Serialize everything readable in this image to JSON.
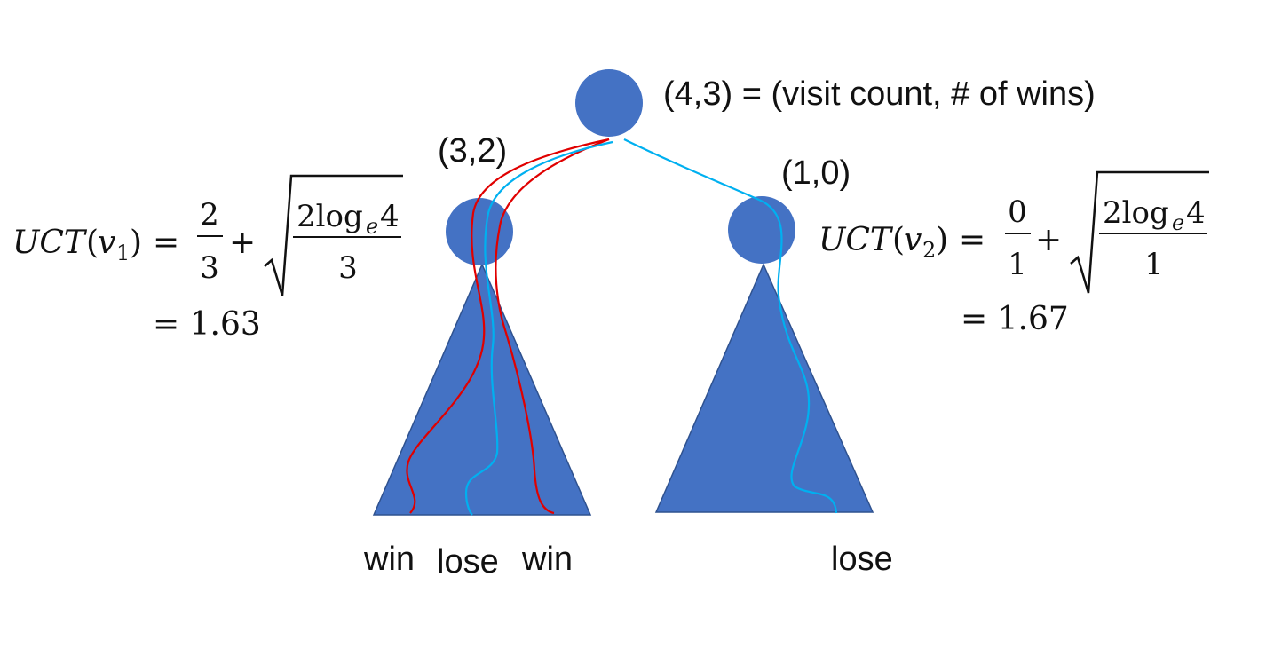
{
  "colors": {
    "node_fill": "#4472C4",
    "tree_fill": "#4472C4",
    "tree_stroke": "#2F528F",
    "win_path": "#E00000",
    "lose_path": "#00B0F0",
    "text": "#111111"
  },
  "root": {
    "label": "(4,3) = (visit count, # of wins)"
  },
  "left_child": {
    "label": "(3,2)",
    "formula": {
      "fn": "UCT",
      "open": "(",
      "var": "v",
      "sub": "1",
      "close": ")",
      "equals": "=",
      "frac_num": "2",
      "frac_den": "3",
      "plus": "+",
      "sqrt_num_coef": "2log",
      "sqrt_num_sub": "e",
      "sqrt_num_arg": "4",
      "sqrt_den": "3",
      "result": "= 1.63"
    },
    "outcomes": [
      "win",
      "lose",
      "win"
    ]
  },
  "right_child": {
    "label": "(1,0)",
    "formula": {
      "fn": "UCT",
      "open": "(",
      "var": "v",
      "sub": "2",
      "close": ")",
      "equals": "=",
      "frac_num": "0",
      "frac_den": "1",
      "plus": "+",
      "sqrt_num_coef": "2log",
      "sqrt_num_sub": "e",
      "sqrt_num_arg": "4",
      "sqrt_den": "1",
      "result": "= 1.67"
    },
    "outcomes": [
      "lose"
    ]
  }
}
